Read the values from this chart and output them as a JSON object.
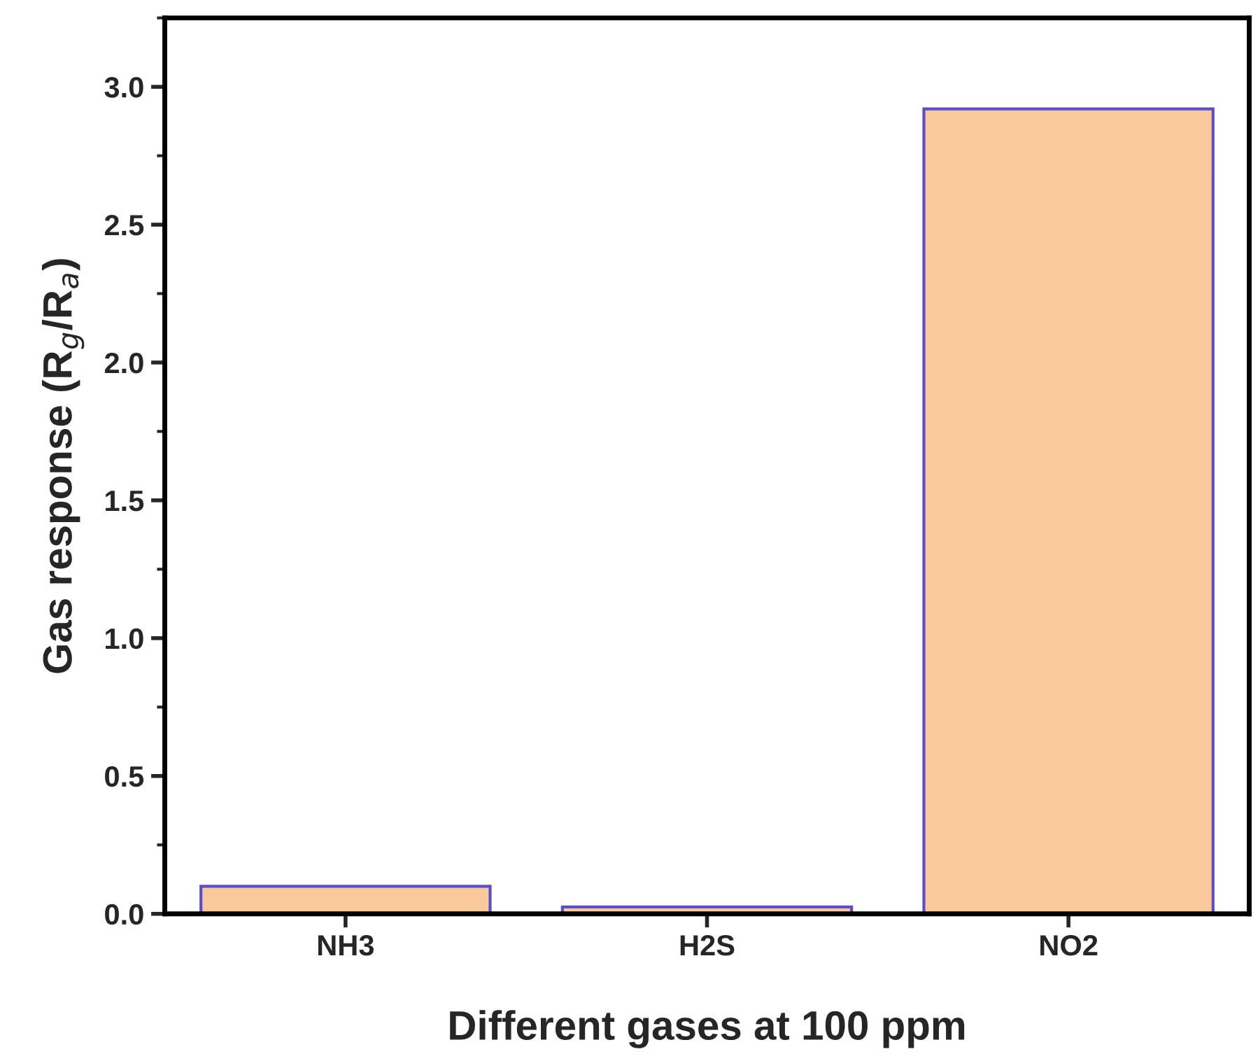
{
  "chart_data": {
    "type": "bar",
    "xlabel": "Different gases at 100 ppm",
    "ylabel": "Gas response (R$_{g}$/R$_{a}$)",
    "categories": [
      "NH3",
      "H2S",
      "NO2"
    ],
    "values": [
      0.1,
      0.025,
      2.92
    ],
    "color": "#f9c89b",
    "ylim": [
      0,
      3.25
    ],
    "yticks": [
      {
        "value": 0,
        "label": "0.0"
      },
      0.5,
      {
        "value": 1,
        "label": "1.0"
      },
      1.5,
      {
        "value": 2,
        "label": "2.0"
      },
      2.5,
      {
        "value": 3,
        "label": "3.0"
      }
    ],
    "grid": false
  }
}
